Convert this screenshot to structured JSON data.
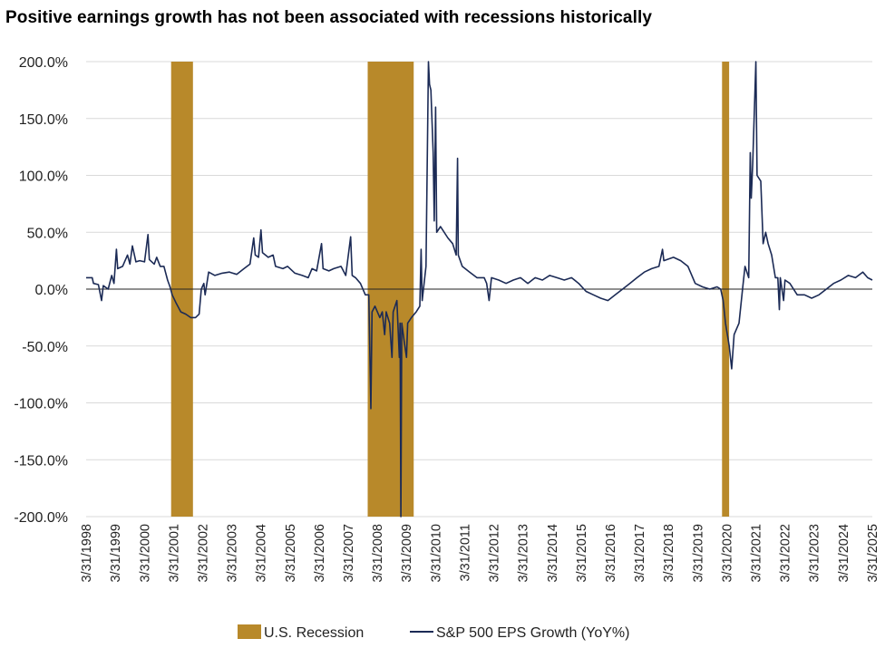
{
  "chart_data": {
    "type": "line",
    "title": "Positive earnings growth has not been associated with recessions historically",
    "xlabel": "",
    "ylabel": "",
    "ylim": [
      -200,
      200
    ],
    "xlim": [
      "1998-03-31",
      "2025-03-31"
    ],
    "y_ticks": [
      "200.0%",
      "150.0%",
      "100.0%",
      "50.0%",
      "0.0%",
      "-50.0%",
      "-100.0%",
      "-150.0%",
      "-200.0%"
    ],
    "y_tick_values": [
      200,
      150,
      100,
      50,
      0,
      -50,
      -100,
      -150,
      -200
    ],
    "x_ticks": [
      "3/31/1998",
      "3/31/1999",
      "3/31/2000",
      "3/31/2001",
      "3/31/2002",
      "3/31/2003",
      "3/31/2004",
      "3/31/2005",
      "3/31/2006",
      "3/31/2007",
      "3/31/2008",
      "3/31/2009",
      "3/31/2010",
      "3/31/2011",
      "3/31/2012",
      "3/31/2013",
      "3/31/2014",
      "3/31/2015",
      "3/31/2016",
      "3/31/2017",
      "3/31/2018",
      "3/31/2019",
      "3/31/2020",
      "3/31/2021",
      "3/31/2022",
      "3/31/2023",
      "3/31/2024",
      "3/31/2025"
    ],
    "x_tick_dates": [
      "1998-03-31",
      "1999-03-31",
      "2000-03-31",
      "2001-03-31",
      "2002-03-31",
      "2003-03-31",
      "2004-03-31",
      "2005-03-31",
      "2006-03-31",
      "2007-03-31",
      "2008-03-31",
      "2009-03-31",
      "2010-03-31",
      "2011-03-31",
      "2012-03-31",
      "2013-03-31",
      "2014-03-31",
      "2015-03-31",
      "2016-03-31",
      "2017-03-31",
      "2018-03-31",
      "2019-03-31",
      "2020-03-31",
      "2021-03-31",
      "2022-03-31",
      "2023-03-31",
      "2024-03-31",
      "2025-03-31"
    ],
    "grid": true,
    "legend_position": "bottom",
    "recessions": [
      {
        "start": "2001-03-01",
        "end": "2001-11-30"
      },
      {
        "start": "2007-12-01",
        "end": "2009-06-30"
      },
      {
        "start": "2020-02-01",
        "end": "2020-04-30"
      }
    ],
    "series": [
      {
        "name": "S&P 500 EPS Growth (YoY%)",
        "color": "#1b2a55",
        "points": [
          [
            "1998-03-31",
            10
          ],
          [
            "1998-06-15",
            10
          ],
          [
            "1998-07-01",
            5
          ],
          [
            "1998-09-01",
            4
          ],
          [
            "1998-10-10",
            -10
          ],
          [
            "1998-11-01",
            3
          ],
          [
            "1999-01-01",
            0
          ],
          [
            "1999-02-15",
            12
          ],
          [
            "1999-03-15",
            5
          ],
          [
            "1999-04-15",
            35
          ],
          [
            "1999-05-01",
            18
          ],
          [
            "1999-07-01",
            20
          ],
          [
            "1999-09-01",
            30
          ],
          [
            "1999-10-01",
            22
          ],
          [
            "1999-11-01",
            38
          ],
          [
            "1999-12-15",
            24
          ],
          [
            "2000-02-01",
            25
          ],
          [
            "2000-04-01",
            24
          ],
          [
            "2000-05-15",
            48
          ],
          [
            "2000-06-01",
            26
          ],
          [
            "2000-08-01",
            22
          ],
          [
            "2000-09-01",
            28
          ],
          [
            "2000-10-15",
            20
          ],
          [
            "2000-12-01",
            20
          ],
          [
            "2001-01-15",
            8
          ],
          [
            "2001-02-15",
            2
          ],
          [
            "2001-03-15",
            -5
          ],
          [
            "2001-05-01",
            -12
          ],
          [
            "2001-07-01",
            -20
          ],
          [
            "2001-09-01",
            -22
          ],
          [
            "2001-11-01",
            -25
          ],
          [
            "2002-01-01",
            -25
          ],
          [
            "2002-02-15",
            -22
          ],
          [
            "2002-03-15",
            0
          ],
          [
            "2002-04-15",
            5
          ],
          [
            "2002-05-01",
            -5
          ],
          [
            "2002-06-15",
            15
          ],
          [
            "2002-09-01",
            12
          ],
          [
            "2002-12-01",
            14
          ],
          [
            "2003-03-01",
            15
          ],
          [
            "2003-06-01",
            13
          ],
          [
            "2003-09-01",
            18
          ],
          [
            "2003-11-15",
            22
          ],
          [
            "2004-01-01",
            45
          ],
          [
            "2004-01-20",
            30
          ],
          [
            "2004-03-01",
            28
          ],
          [
            "2004-04-01",
            52
          ],
          [
            "2004-04-20",
            32
          ],
          [
            "2004-07-01",
            28
          ],
          [
            "2004-09-01",
            30
          ],
          [
            "2004-10-01",
            20
          ],
          [
            "2005-01-01",
            18
          ],
          [
            "2005-03-01",
            20
          ],
          [
            "2005-06-01",
            14
          ],
          [
            "2005-09-01",
            12
          ],
          [
            "2005-11-15",
            10
          ],
          [
            "2006-01-01",
            18
          ],
          [
            "2006-03-01",
            16
          ],
          [
            "2006-05-01",
            40
          ],
          [
            "2006-05-20",
            18
          ],
          [
            "2006-08-01",
            16
          ],
          [
            "2006-10-01",
            18
          ],
          [
            "2007-01-01",
            20
          ],
          [
            "2007-03-01",
            12
          ],
          [
            "2007-05-01",
            46
          ],
          [
            "2007-05-20",
            12
          ],
          [
            "2007-07-01",
            10
          ],
          [
            "2007-09-01",
            5
          ],
          [
            "2007-11-01",
            -5
          ],
          [
            "2007-12-15",
            -5
          ],
          [
            "2008-01-10",
            -105
          ],
          [
            "2008-01-25",
            -20
          ],
          [
            "2008-03-01",
            -15
          ],
          [
            "2008-05-01",
            -25
          ],
          [
            "2008-06-01",
            -20
          ],
          [
            "2008-07-01",
            -40
          ],
          [
            "2008-07-20",
            -20
          ],
          [
            "2008-09-01",
            -30
          ],
          [
            "2008-10-01",
            -60
          ],
          [
            "2008-10-15",
            -20
          ],
          [
            "2008-12-01",
            -10
          ],
          [
            "2009-01-01",
            -60
          ],
          [
            "2009-01-10",
            -30
          ],
          [
            "2009-01-20",
            -200
          ],
          [
            "2009-02-01",
            -30
          ],
          [
            "2009-03-01",
            -45
          ],
          [
            "2009-04-01",
            -60
          ],
          [
            "2009-04-15",
            -30
          ],
          [
            "2009-06-01",
            -25
          ],
          [
            "2009-08-01",
            -20
          ],
          [
            "2009-09-15",
            -15
          ],
          [
            "2009-10-01",
            35
          ],
          [
            "2009-10-15",
            -10
          ],
          [
            "2009-12-01",
            20
          ],
          [
            "2010-01-01",
            200
          ],
          [
            "2010-01-15",
            180
          ],
          [
            "2010-02-01",
            175
          ],
          [
            "2010-03-01",
            120
          ],
          [
            "2010-03-15",
            60
          ],
          [
            "2010-04-01",
            160
          ],
          [
            "2010-04-15",
            50
          ],
          [
            "2010-06-01",
            55
          ],
          [
            "2010-09-01",
            45
          ],
          [
            "2010-11-01",
            40
          ],
          [
            "2010-12-15",
            30
          ],
          [
            "2011-01-01",
            115
          ],
          [
            "2011-01-10",
            30
          ],
          [
            "2011-03-01",
            20
          ],
          [
            "2011-06-01",
            15
          ],
          [
            "2011-09-01",
            10
          ],
          [
            "2011-12-01",
            10
          ],
          [
            "2012-01-01",
            5
          ],
          [
            "2012-02-01",
            -10
          ],
          [
            "2012-03-01",
            10
          ],
          [
            "2012-06-01",
            8
          ],
          [
            "2012-09-01",
            5
          ],
          [
            "2012-12-01",
            8
          ],
          [
            "2013-03-01",
            10
          ],
          [
            "2013-06-01",
            5
          ],
          [
            "2013-09-01",
            10
          ],
          [
            "2013-12-01",
            8
          ],
          [
            "2014-03-01",
            12
          ],
          [
            "2014-06-01",
            10
          ],
          [
            "2014-09-01",
            8
          ],
          [
            "2014-12-01",
            10
          ],
          [
            "2015-03-01",
            5
          ],
          [
            "2015-06-01",
            -2
          ],
          [
            "2015-09-01",
            -5
          ],
          [
            "2015-12-01",
            -8
          ],
          [
            "2016-03-01",
            -10
          ],
          [
            "2016-06-01",
            -5
          ],
          [
            "2016-09-01",
            0
          ],
          [
            "2016-12-01",
            5
          ],
          [
            "2017-03-01",
            10
          ],
          [
            "2017-06-01",
            15
          ],
          [
            "2017-09-01",
            18
          ],
          [
            "2017-12-01",
            20
          ],
          [
            "2018-01-15",
            35
          ],
          [
            "2018-02-01",
            25
          ],
          [
            "2018-06-01",
            28
          ],
          [
            "2018-09-01",
            25
          ],
          [
            "2018-12-01",
            20
          ],
          [
            "2019-03-01",
            5
          ],
          [
            "2019-06-01",
            2
          ],
          [
            "2019-09-01",
            0
          ],
          [
            "2019-12-01",
            2
          ],
          [
            "2020-01-15",
            0
          ],
          [
            "2020-02-15",
            -10
          ],
          [
            "2020-03-15",
            -30
          ],
          [
            "2020-05-01",
            -50
          ],
          [
            "2020-06-01",
            -70
          ],
          [
            "2020-07-01",
            -40
          ],
          [
            "2020-09-01",
            -30
          ],
          [
            "2020-10-15",
            0
          ],
          [
            "2020-11-15",
            20
          ],
          [
            "2021-01-01",
            10
          ],
          [
            "2021-01-20",
            120
          ],
          [
            "2021-02-01",
            80
          ],
          [
            "2021-02-20",
            110
          ],
          [
            "2021-04-01",
            200
          ],
          [
            "2021-04-15",
            100
          ],
          [
            "2021-06-01",
            95
          ],
          [
            "2021-07-01",
            40
          ],
          [
            "2021-08-01",
            50
          ],
          [
            "2021-09-01",
            40
          ],
          [
            "2021-10-15",
            30
          ],
          [
            "2021-12-01",
            10
          ],
          [
            "2022-01-01",
            10
          ],
          [
            "2022-01-20",
            -18
          ],
          [
            "2022-02-01",
            10
          ],
          [
            "2022-03-15",
            -10
          ],
          [
            "2022-04-01",
            8
          ],
          [
            "2022-06-01",
            5
          ],
          [
            "2022-09-01",
            -5
          ],
          [
            "2022-12-01",
            -5
          ],
          [
            "2023-03-01",
            -8
          ],
          [
            "2023-06-01",
            -5
          ],
          [
            "2023-09-01",
            0
          ],
          [
            "2023-12-01",
            5
          ],
          [
            "2024-03-01",
            8
          ],
          [
            "2024-06-01",
            12
          ],
          [
            "2024-09-01",
            10
          ],
          [
            "2024-12-01",
            15
          ],
          [
            "2025-02-01",
            10
          ],
          [
            "2025-03-31",
            8
          ]
        ]
      }
    ],
    "legend": [
      {
        "label": "U.S. Recession",
        "color": "#b8892a",
        "kind": "box"
      },
      {
        "label": "S&P 500 EPS Growth (YoY%)",
        "color": "#1b2a55",
        "kind": "line"
      }
    ]
  }
}
